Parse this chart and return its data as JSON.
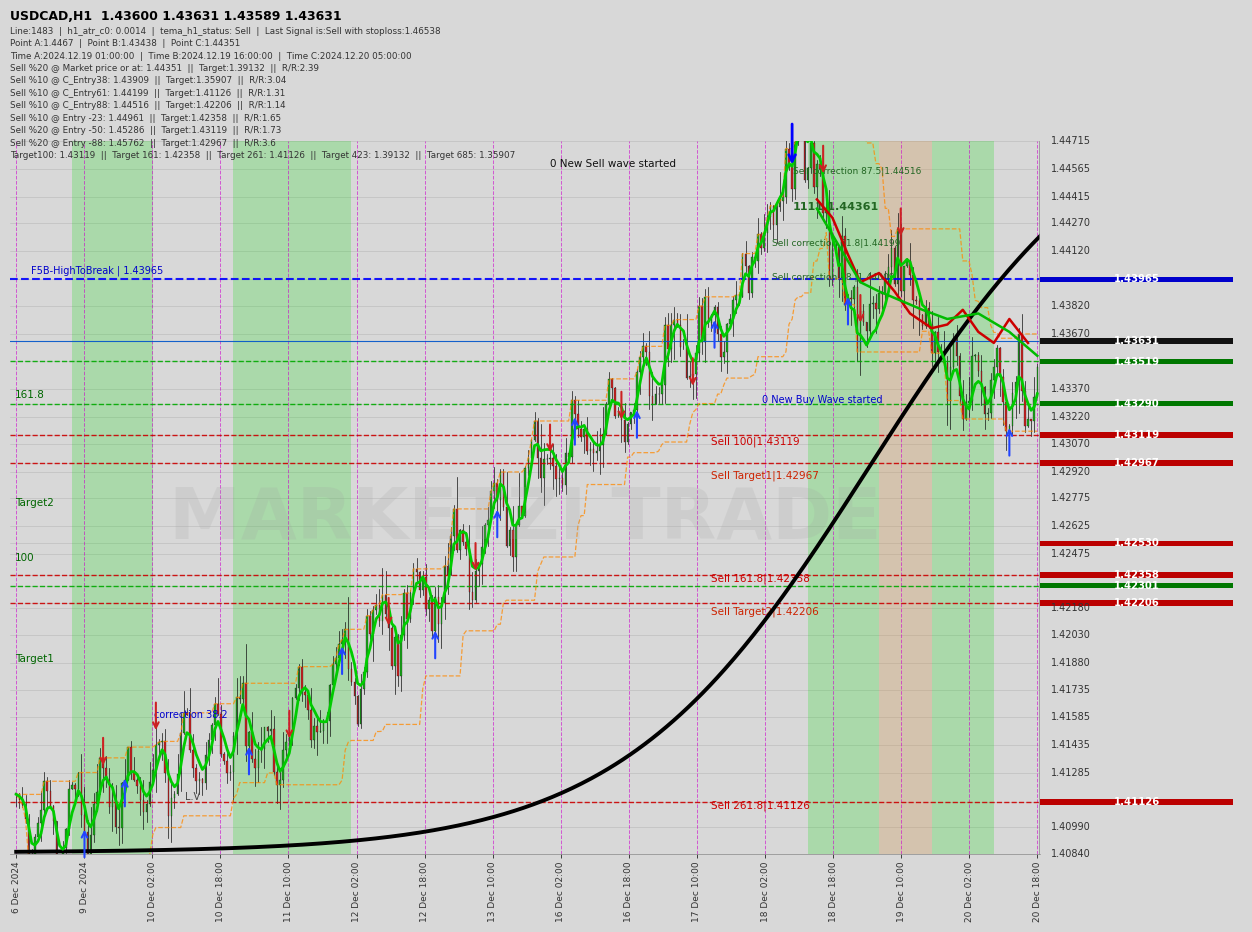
{
  "title": "USDCAD,H1  1.43600 1.43631 1.43589 1.43631",
  "info_lines": [
    "Line:1483  |  h1_atr_c0: 0.0014  |  tema_h1_status: Sell  |  Last Signal is:Sell with stoploss:1.46538",
    "Point A:1.4467  |  Point B:1.43438  |  Point C:1.44351",
    "Time A:2024.12.19 01:00:00  |  Time B:2024.12.19 16:00:00  |  Time C:2024.12.20 05:00:00",
    "Sell %20 @ Market price or at: 1.44351  ||  Target:1.39132  ||  R/R:2.39",
    "Sell %10 @ C_Entry38: 1.43909  ||  Target:1.35907  ||  R/R:3.04",
    "Sell %10 @ C_Entry61: 1.44199  ||  Target:1.41126  ||  R/R:1.31",
    "Sell %10 @ C_Entry88: 1.44516  ||  Target:1.42206  ||  R/R:1.14",
    "Sell %10 @ Entry -23: 1.44961  ||  Target:1.42358  ||  R/R:1.65",
    "Sell %20 @ Entry -50: 1.45286  ||  Target:1.43119  ||  R/R:1.73",
    "Sell %20 @ Entry -88: 1.45762  ||  Target:1.42967  ||  R/R:3.6",
    "Target100: 1.43119  ||  Target 161: 1.42358  ||  Target 261: 1.41126  ||  Target 423: 1.39132  ||  Target 685: 1.35907"
  ],
  "y_min": 1.4084,
  "y_max": 1.44715,
  "price_labels_right": [
    {
      "price": 1.44715,
      "color": "gray",
      "label": "1.44715"
    },
    {
      "price": 1.44565,
      "color": "gray",
      "label": "1.44565"
    },
    {
      "price": 1.44415,
      "color": "gray",
      "label": "1.44415"
    },
    {
      "price": 1.4427,
      "color": "gray",
      "label": "1.44270"
    },
    {
      "price": 1.4412,
      "color": "gray",
      "label": "1.44120"
    },
    {
      "price": 1.43965,
      "color": "blue",
      "label": "1.43965"
    },
    {
      "price": 1.4382,
      "color": "gray",
      "label": "1.43820"
    },
    {
      "price": 1.4367,
      "color": "gray",
      "label": "1.43670"
    },
    {
      "price": 1.43631,
      "color": "black",
      "label": "1.43631"
    },
    {
      "price": 1.43519,
      "color": "green",
      "label": "1.43519"
    },
    {
      "price": 1.4337,
      "color": "gray",
      "label": "1.43370"
    },
    {
      "price": 1.4329,
      "color": "green",
      "label": "1.43290"
    },
    {
      "price": 1.4322,
      "color": "gray",
      "label": "1.43220"
    },
    {
      "price": 1.43119,
      "color": "red",
      "label": "1.43119"
    },
    {
      "price": 1.4307,
      "color": "gray",
      "label": "1.43070"
    },
    {
      "price": 1.42967,
      "color": "red",
      "label": "1.42967"
    },
    {
      "price": 1.4292,
      "color": "gray",
      "label": "1.42920"
    },
    {
      "price": 1.42775,
      "color": "gray",
      "label": "1.42775"
    },
    {
      "price": 1.42625,
      "color": "gray",
      "label": "1.42625"
    },
    {
      "price": 1.4253,
      "color": "red",
      "label": "1.42530"
    },
    {
      "price": 1.42475,
      "color": "gray",
      "label": "1.42475"
    },
    {
      "price": 1.42358,
      "color": "red",
      "label": "1.42358"
    },
    {
      "price": 1.42301,
      "color": "green",
      "label": "1.42301"
    },
    {
      "price": 1.42206,
      "color": "red",
      "label": "1.42206"
    },
    {
      "price": 1.4218,
      "color": "gray",
      "label": "1.42180"
    },
    {
      "price": 1.4203,
      "color": "gray",
      "label": "1.42030"
    },
    {
      "price": 1.4188,
      "color": "gray",
      "label": "1.41880"
    },
    {
      "price": 1.41735,
      "color": "gray",
      "label": "1.41735"
    },
    {
      "price": 1.41585,
      "color": "gray",
      "label": "1.41585"
    },
    {
      "price": 1.41435,
      "color": "gray",
      "label": "1.41435"
    },
    {
      "price": 1.41285,
      "color": "gray",
      "label": "1.41285"
    },
    {
      "price": 1.41126,
      "color": "red",
      "label": "1.41126"
    },
    {
      "price": 1.4099,
      "color": "gray",
      "label": "1.40990"
    },
    {
      "price": 1.4084,
      "color": "gray",
      "label": "1.40840"
    }
  ],
  "h_lines": [
    {
      "price": 1.43965,
      "color": "#0000ff",
      "style": "--",
      "lw": 1.5
    },
    {
      "price": 1.43119,
      "color": "#cc0000",
      "style": "--",
      "lw": 1.0
    },
    {
      "price": 1.42967,
      "color": "#cc0000",
      "style": "--",
      "lw": 1.0
    },
    {
      "price": 1.42358,
      "color": "#cc0000",
      "style": "--",
      "lw": 1.0
    },
    {
      "price": 1.42206,
      "color": "#cc0000",
      "style": "--",
      "lw": 1.0
    },
    {
      "price": 1.41126,
      "color": "#cc0000",
      "style": "--",
      "lw": 1.0
    },
    {
      "price": 1.43519,
      "color": "#00aa00",
      "style": "--",
      "lw": 1.0
    },
    {
      "price": 1.4329,
      "color": "#00aa00",
      "style": "--",
      "lw": 1.0
    },
    {
      "price": 1.42301,
      "color": "#00aa00",
      "style": "--",
      "lw": 1.0
    },
    {
      "price": 1.43631,
      "color": "#0055cc",
      "style": "-",
      "lw": 0.8
    }
  ],
  "watermark": "MARKETZI TRADE",
  "date_labels": [
    "6 Dec 2024",
    "9 Dec 2024",
    "10 Dec 02:00",
    "10 Dec 18:00",
    "11 Dec 10:00",
    "12 Dec 02:00",
    "12 Dec 18:00",
    "13 Dec 10:00",
    "16 Dec 02:00",
    "16 Dec 18:00",
    "17 Dec 10:00",
    "18 Dec 02:00",
    "18 Dec 18:00",
    "19 Dec 10:00",
    "20 Dec 02:00",
    "20 Dec 18:00"
  ]
}
